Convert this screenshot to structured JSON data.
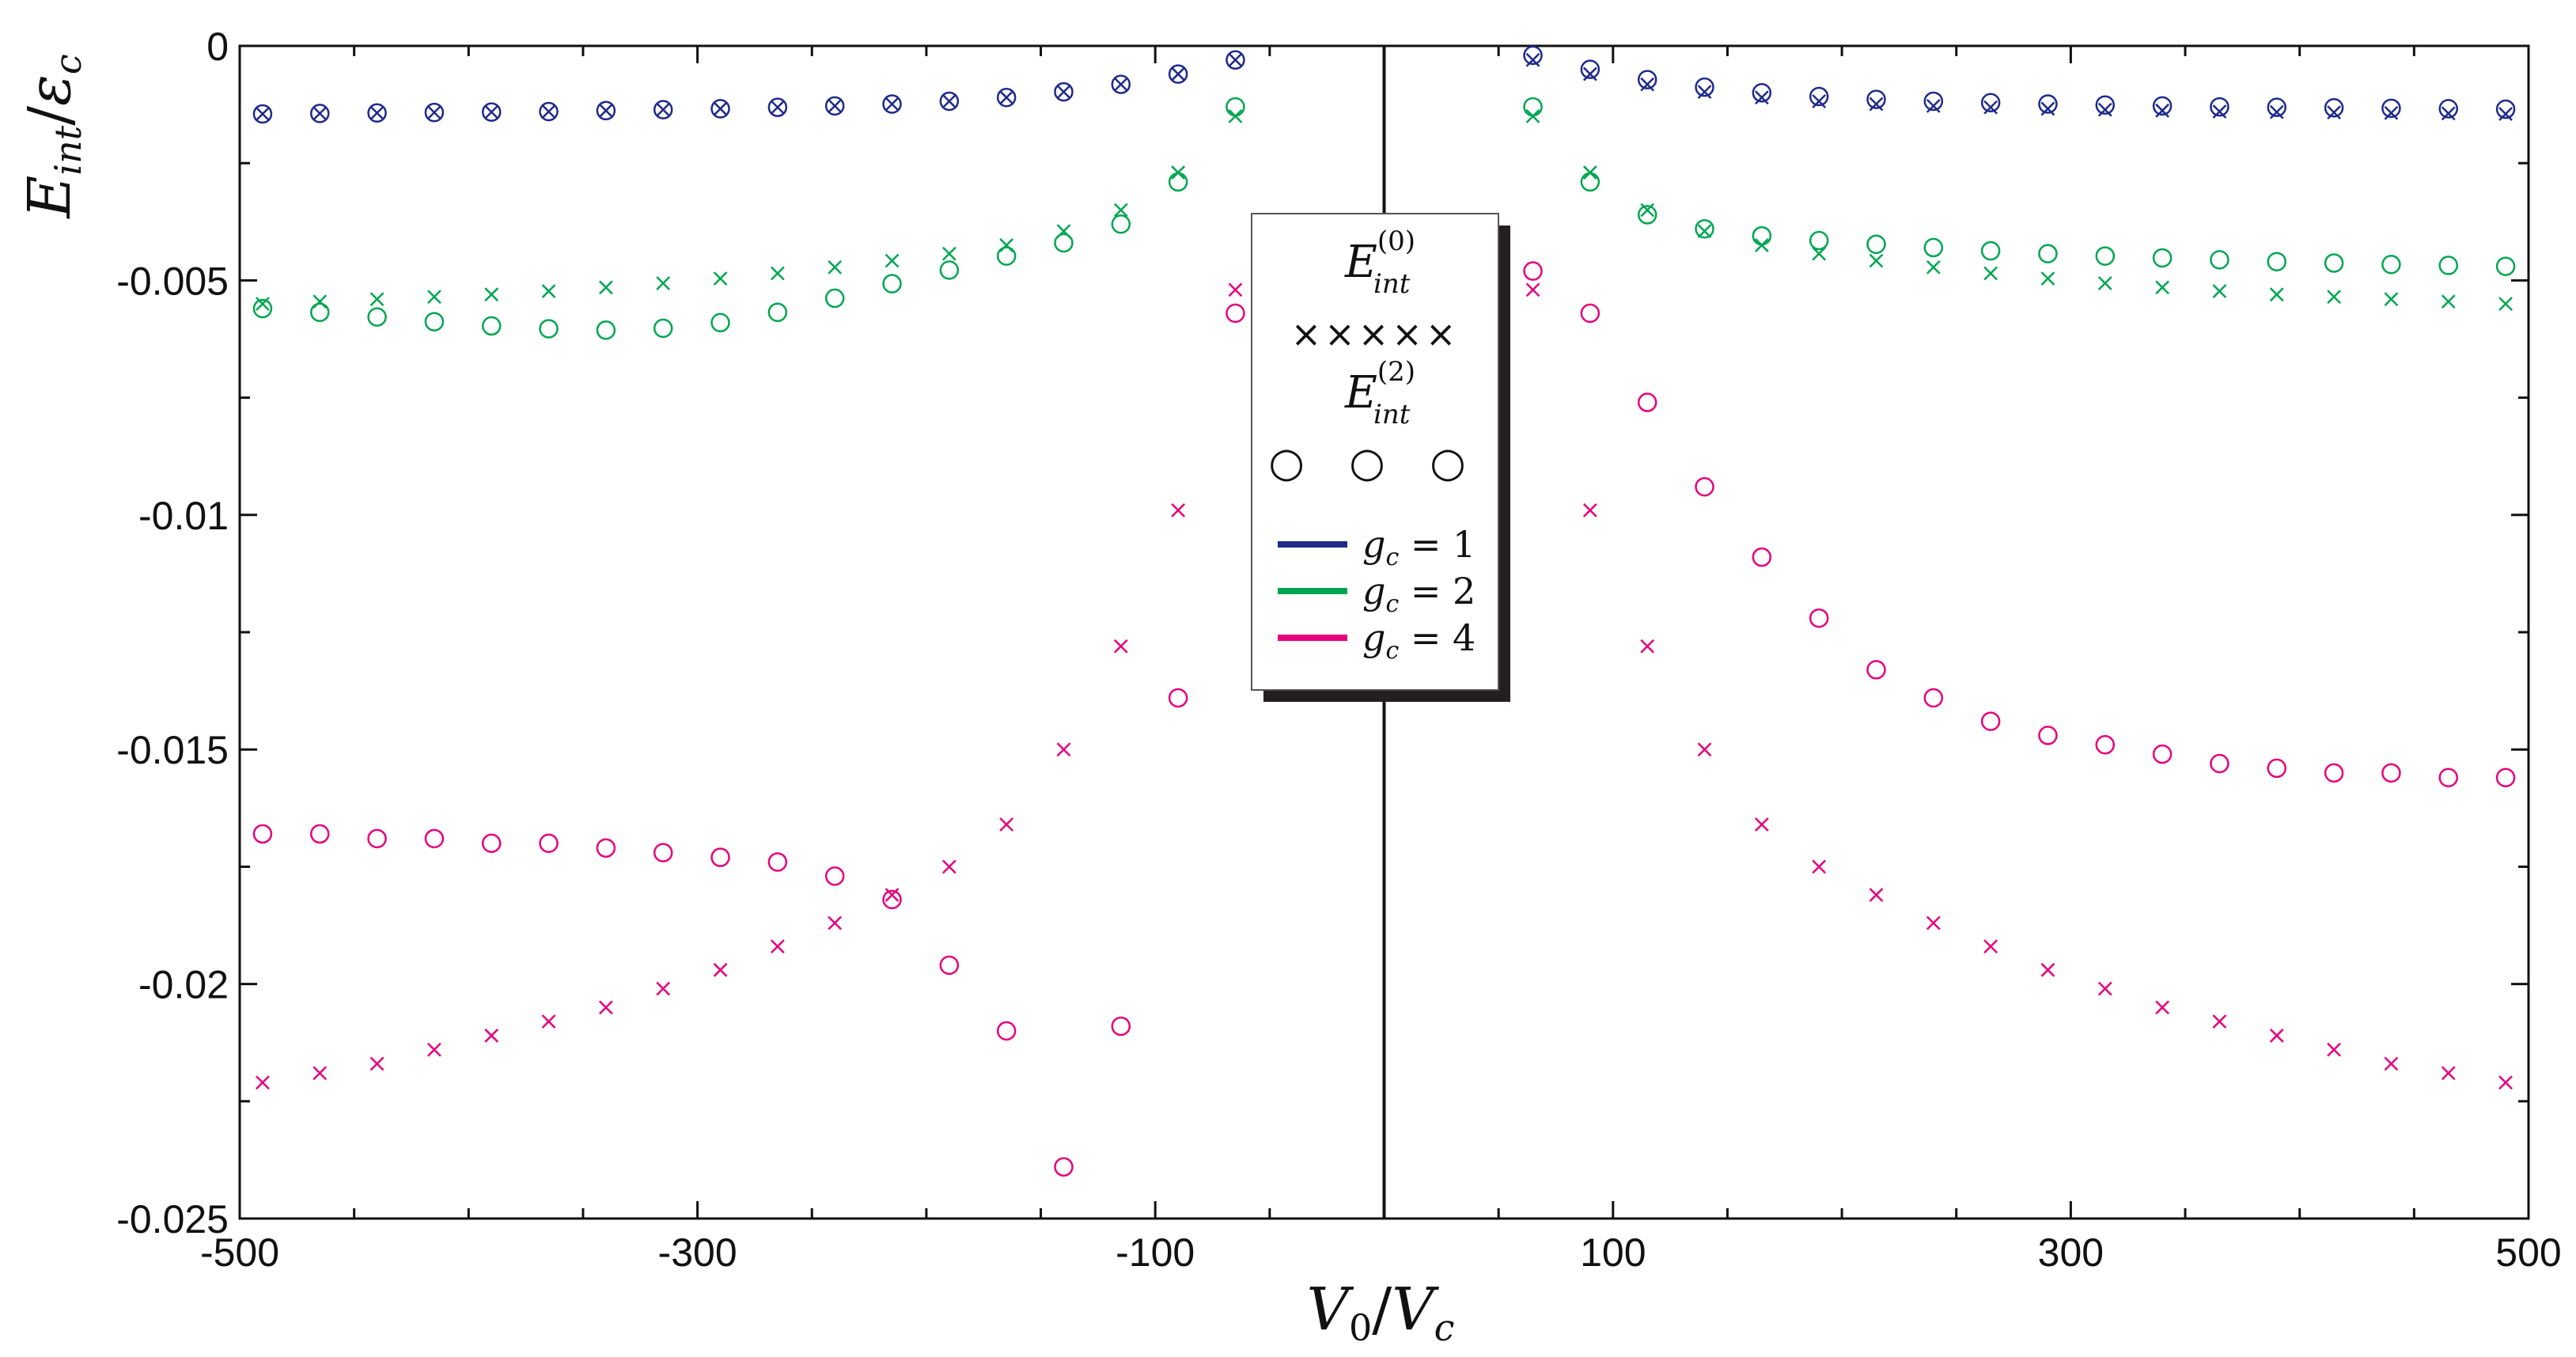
{
  "chart_data": {
    "type": "scatter",
    "title": "",
    "xlabel": "V_0/V_c",
    "ylabel": "E_int/ε_c",
    "xlabel_parts": {
      "main": "V",
      "sub": "0",
      "slash": "/",
      "main2": "V",
      "sub2": "c"
    },
    "ylabel_parts": {
      "main": "E",
      "sub": "int",
      "slash": "/",
      "main2": "ε",
      "sub2": "c"
    },
    "xlim": [
      -500,
      500
    ],
    "ylim": [
      -0.025,
      0
    ],
    "xticks": [
      -500,
      -300,
      -100,
      100,
      300,
      500
    ],
    "xtick_labels": [
      "-500",
      "-300",
      "-100",
      "100",
      "300",
      "500"
    ],
    "yticks": [
      0,
      -0.005,
      -0.01,
      -0.015,
      -0.02,
      -0.025
    ],
    "ytick_labels": [
      "0",
      "-0.005",
      "-0.01",
      "-0.015",
      "-0.02",
      "-0.025"
    ],
    "grid": false,
    "vertical_line_x": 0,
    "legend": {
      "position": "center-top",
      "marker_entries": [
        {
          "label_main": "E",
          "label_sub": "int",
          "label_sup": "(0)",
          "marker": "×",
          "symbols": "×××××"
        },
        {
          "label_main": "E",
          "label_sub": "int",
          "label_sup": "(2)",
          "marker": "○",
          "symbols": "○ ○ ○"
        }
      ],
      "color_entries": [
        {
          "label": "g_c = 1",
          "main": "g",
          "sub": "c",
          "rest": " = 1",
          "color": "#1f2a8a"
        },
        {
          "label": "g_c = 2",
          "main": "g",
          "sub": "c",
          "rest": " = 2",
          "color": "#00a651"
        },
        {
          "label": "g_c = 4",
          "main": "g",
          "sub": "c",
          "rest": " = 4",
          "color": "#e6007e"
        }
      ]
    },
    "series": [
      {
        "name": "g_c = 1, E_int^(0)",
        "marker": "x",
        "color": "#1f2a8a",
        "x": [
          -490,
          -465,
          -440,
          -415,
          -390,
          -365,
          -340,
          -315,
          -290,
          -265,
          -240,
          -215,
          -190,
          -165,
          -140,
          -115,
          -90,
          -65,
          490,
          465,
          440,
          415,
          390,
          365,
          340,
          315,
          290,
          265,
          240,
          215,
          190,
          165,
          140,
          115,
          90,
          65
        ],
        "y": [
          -0.00145,
          -0.00144,
          -0.00143,
          -0.00142,
          -0.00141,
          -0.0014,
          -0.00138,
          -0.00136,
          -0.00134,
          -0.00131,
          -0.00128,
          -0.00124,
          -0.00118,
          -0.0011,
          -0.00098,
          -0.00082,
          -0.0006,
          -0.0003,
          -0.00145,
          -0.00144,
          -0.00143,
          -0.00142,
          -0.00141,
          -0.0014,
          -0.00138,
          -0.00136,
          -0.00134,
          -0.00131,
          -0.00128,
          -0.00124,
          -0.00118,
          -0.0011,
          -0.00098,
          -0.00082,
          -0.0006,
          -0.0003
        ]
      },
      {
        "name": "g_c = 1, E_int^(2)",
        "marker": "o",
        "color": "#1f2a8a",
        "x": [
          -490,
          -465,
          -440,
          -415,
          -390,
          -365,
          -340,
          -315,
          -290,
          -265,
          -240,
          -215,
          -190,
          -165,
          -140,
          -115,
          -90,
          -65,
          490,
          465,
          440,
          415,
          390,
          365,
          340,
          315,
          290,
          265,
          240,
          215,
          190,
          165,
          140,
          115,
          90,
          65
        ],
        "y": [
          -0.00145,
          -0.00144,
          -0.00143,
          -0.00142,
          -0.00141,
          -0.0014,
          -0.00138,
          -0.00136,
          -0.00134,
          -0.00131,
          -0.00128,
          -0.00124,
          -0.00118,
          -0.0011,
          -0.00098,
          -0.00082,
          -0.0006,
          -0.0003,
          -0.00135,
          -0.00134,
          -0.00133,
          -0.00132,
          -0.00131,
          -0.0013,
          -0.00128,
          -0.00126,
          -0.00124,
          -0.00121,
          -0.00118,
          -0.00114,
          -0.00108,
          -0.001,
          -0.00088,
          -0.00072,
          -0.0005,
          -0.0002
        ]
      },
      {
        "name": "g_c = 2, E_int^(0)",
        "marker": "x",
        "color": "#00a651",
        "x": [
          -490,
          -465,
          -440,
          -415,
          -390,
          -365,
          -340,
          -315,
          -290,
          -265,
          -240,
          -215,
          -190,
          -165,
          -140,
          -115,
          -90,
          -65,
          490,
          465,
          440,
          415,
          390,
          365,
          340,
          315,
          290,
          265,
          240,
          215,
          190,
          165,
          140,
          115,
          90,
          65
        ],
        "y": [
          -0.0055,
          -0.00545,
          -0.0054,
          -0.00535,
          -0.0053,
          -0.00523,
          -0.00515,
          -0.00506,
          -0.00496,
          -0.00485,
          -0.00472,
          -0.00458,
          -0.00443,
          -0.00425,
          -0.00395,
          -0.0035,
          -0.0027,
          -0.0015,
          -0.0055,
          -0.00545,
          -0.0054,
          -0.00535,
          -0.0053,
          -0.00523,
          -0.00515,
          -0.00506,
          -0.00496,
          -0.00485,
          -0.00472,
          -0.00458,
          -0.00443,
          -0.00425,
          -0.00395,
          -0.0035,
          -0.0027,
          -0.0015
        ]
      },
      {
        "name": "g_c = 2, E_int^(2)",
        "marker": "o",
        "color": "#00a651",
        "x": [
          -490,
          -465,
          -440,
          -415,
          -390,
          -365,
          -340,
          -315,
          -290,
          -265,
          -240,
          -215,
          -190,
          -165,
          -140,
          -115,
          -90,
          -65,
          490,
          465,
          440,
          415,
          390,
          365,
          340,
          315,
          290,
          265,
          240,
          215,
          190,
          165,
          140,
          115,
          90,
          65
        ],
        "y": [
          -0.0056,
          -0.00568,
          -0.00578,
          -0.00588,
          -0.00597,
          -0.00603,
          -0.00606,
          -0.00602,
          -0.0059,
          -0.00568,
          -0.00538,
          -0.00507,
          -0.00478,
          -0.00448,
          -0.0042,
          -0.0038,
          -0.0029,
          -0.0013,
          -0.0047,
          -0.00468,
          -0.00466,
          -0.00463,
          -0.0046,
          -0.00456,
          -0.00452,
          -0.00448,
          -0.00443,
          -0.00437,
          -0.0043,
          -0.00423,
          -0.00415,
          -0.00405,
          -0.0039,
          -0.0036,
          -0.0029,
          -0.0013
        ]
      },
      {
        "name": "g_c = 4, E_int^(0)",
        "marker": "x",
        "color": "#e6007e",
        "x": [
          -490,
          -465,
          -440,
          -415,
          -390,
          -365,
          -340,
          -315,
          -290,
          -265,
          -240,
          -215,
          -190,
          -165,
          -140,
          -115,
          -90,
          -65,
          490,
          465,
          440,
          415,
          390,
          365,
          340,
          315,
          290,
          265,
          240,
          215,
          190,
          165,
          140,
          115,
          90,
          65
        ],
        "y": [
          -0.0221,
          -0.0219,
          -0.0217,
          -0.0214,
          -0.0211,
          -0.0208,
          -0.0205,
          -0.0201,
          -0.0197,
          -0.0192,
          -0.0187,
          -0.0181,
          -0.0175,
          -0.0166,
          -0.015,
          -0.0128,
          -0.0099,
          -0.0052,
          -0.0221,
          -0.0219,
          -0.0217,
          -0.0214,
          -0.0211,
          -0.0208,
          -0.0205,
          -0.0201,
          -0.0197,
          -0.0192,
          -0.0187,
          -0.0181,
          -0.0175,
          -0.0166,
          -0.015,
          -0.0128,
          -0.0099,
          -0.0052
        ]
      },
      {
        "name": "g_c = 4, E_int^(2)",
        "marker": "o",
        "color": "#e6007e",
        "x": [
          -490,
          -465,
          -440,
          -415,
          -390,
          -365,
          -340,
          -315,
          -290,
          -265,
          -240,
          -215,
          -190,
          -165,
          -140,
          -115,
          -90,
          -65,
          490,
          465,
          440,
          415,
          390,
          365,
          340,
          315,
          290,
          265,
          240,
          215,
          190,
          165,
          140,
          115,
          90,
          65
        ],
        "y": [
          -0.0168,
          -0.0168,
          -0.0169,
          -0.0169,
          -0.017,
          -0.017,
          -0.0171,
          -0.0172,
          -0.0173,
          -0.0174,
          -0.0177,
          -0.0182,
          -0.0196,
          -0.021,
          -0.0239,
          -0.0209,
          -0.0139,
          -0.0057,
          -0.0156,
          -0.0156,
          -0.0155,
          -0.0155,
          -0.0154,
          -0.0153,
          -0.0151,
          -0.0149,
          -0.0147,
          -0.0144,
          -0.0139,
          -0.0133,
          -0.0122,
          -0.0109,
          -0.0094,
          -0.0076,
          -0.0057,
          -0.0048
        ]
      }
    ]
  }
}
